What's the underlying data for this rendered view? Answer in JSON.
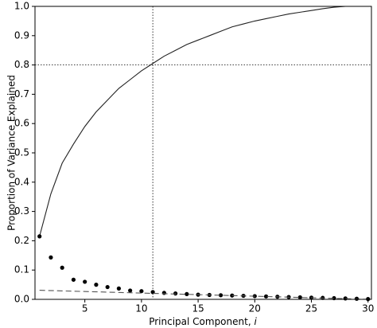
{
  "chart_data": {
    "type": "line",
    "xlabel": "Principal Component, ",
    "xlabel_symbol": "i",
    "ylabel": "Proportion of Variance Explained",
    "xlim": [
      0.6,
      30.3
    ],
    "ylim": [
      0,
      1
    ],
    "xticks": [
      5,
      10,
      15,
      20,
      25,
      30
    ],
    "yticks": [
      {
        "value": 0,
        "label": "0.0"
      },
      0.1,
      0.2,
      0.3,
      0.4,
      0.5,
      0.6,
      0.7,
      0.8,
      0.9,
      {
        "value": 1,
        "label": "1.0"
      }
    ],
    "vline": 11,
    "hline": 0.8,
    "series": [
      {
        "style": "solid",
        "color": "#222222",
        "x": [
          1,
          2,
          3,
          4,
          5,
          6,
          7,
          8,
          9,
          10,
          11,
          12,
          13,
          14,
          15,
          16,
          17,
          18,
          19,
          20,
          21,
          22,
          23,
          24,
          25,
          26,
          27,
          28,
          29,
          30
        ],
        "values": [
          0.215,
          0.36,
          0.465,
          0.53,
          0.59,
          0.64,
          0.68,
          0.72,
          0.75,
          0.78,
          0.805,
          0.83,
          0.85,
          0.87,
          0.885,
          0.9,
          0.915,
          0.93,
          0.94,
          0.95,
          0.958,
          0.966,
          0.974,
          0.98,
          0.986,
          0.992,
          0.997,
          1.0,
          1.0,
          1.0
        ]
      },
      {
        "style": "dots",
        "color": "#000000",
        "x": [
          1,
          2,
          3,
          4,
          5,
          6,
          7,
          8,
          9,
          10,
          11,
          12,
          13,
          14,
          15,
          16,
          17,
          18,
          19,
          20,
          21,
          22,
          23,
          24,
          25,
          26,
          27,
          28,
          29,
          30
        ],
        "values": [
          0.215,
          0.143,
          0.108,
          0.067,
          0.06,
          0.05,
          0.042,
          0.037,
          0.03,
          0.028,
          0.025,
          0.022,
          0.02,
          0.018,
          0.016,
          0.015,
          0.014,
          0.013,
          0.012,
          0.011,
          0.01,
          0.009,
          0.008,
          0.007,
          0.006,
          0.005,
          0.004,
          0.003,
          0.002,
          0.001
        ]
      },
      {
        "style": "dashed",
        "color": "#555555",
        "x": [
          1,
          30
        ],
        "values": [
          0.031,
          0
        ]
      }
    ]
  }
}
